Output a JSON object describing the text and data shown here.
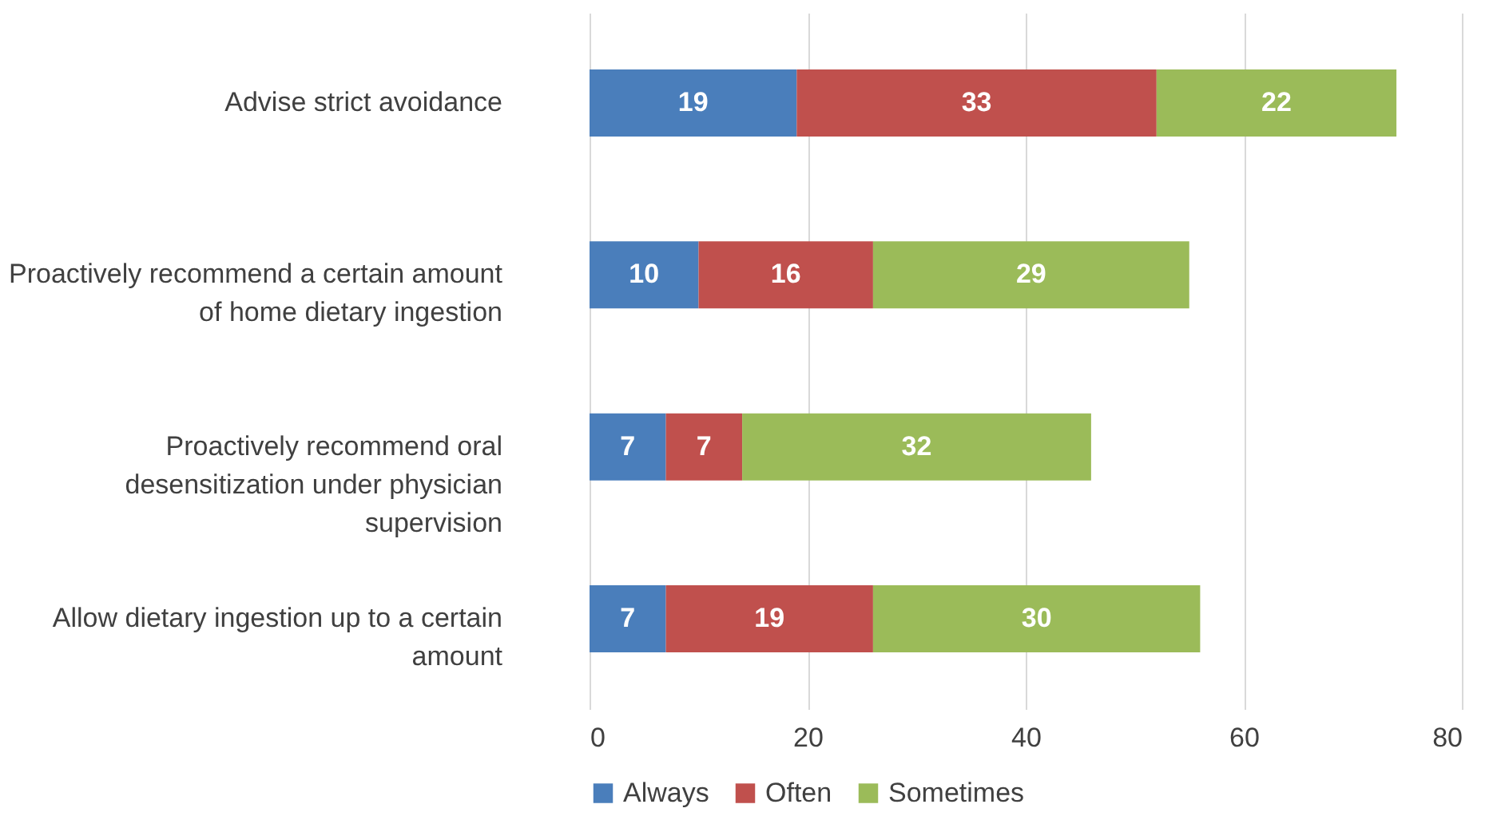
{
  "chart_data": {
    "type": "bar",
    "orientation": "horizontal",
    "stacked": true,
    "data_labels": true,
    "grid": "x",
    "legend": "bottom",
    "categories": [
      "Advise strict avoidance",
      "Proactively recommend a certain amount of home dietary ingestion",
      "Proactively recommend oral desensitization under physician supervision",
      "Allow dietary ingestion up to a certain amount"
    ],
    "series": [
      {
        "name": "Always",
        "color": "#4a7ebb",
        "values": [
          19,
          10,
          7,
          7
        ]
      },
      {
        "name": "Often",
        "color": "#c0504d",
        "values": [
          33,
          16,
          7,
          19
        ]
      },
      {
        "name": "Sometimes",
        "color": "#9bbb59",
        "values": [
          22,
          29,
          32,
          30
        ]
      }
    ],
    "xlim": [
      0,
      80
    ],
    "xticks": [
      0,
      20,
      40,
      60,
      80
    ]
  }
}
